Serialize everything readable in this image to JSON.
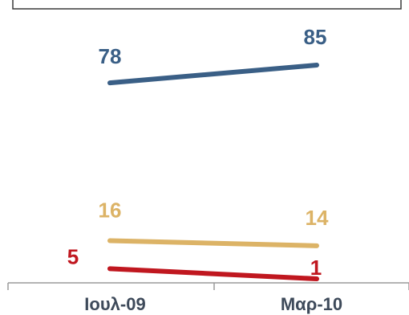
{
  "chart_data": {
    "type": "line",
    "categories": [
      "Ιουλ-09",
      "Μαρ-10"
    ],
    "series": [
      {
        "values": [
          78,
          85
        ],
        "color": "#3a5f86"
      },
      {
        "values": [
          16,
          14
        ],
        "color": "#dcb366"
      },
      {
        "values": [
          5,
          1
        ],
        "color": "#c0171f"
      }
    ],
    "ylim": [
      0,
      100
    ],
    "grid": false,
    "legend": "none"
  }
}
